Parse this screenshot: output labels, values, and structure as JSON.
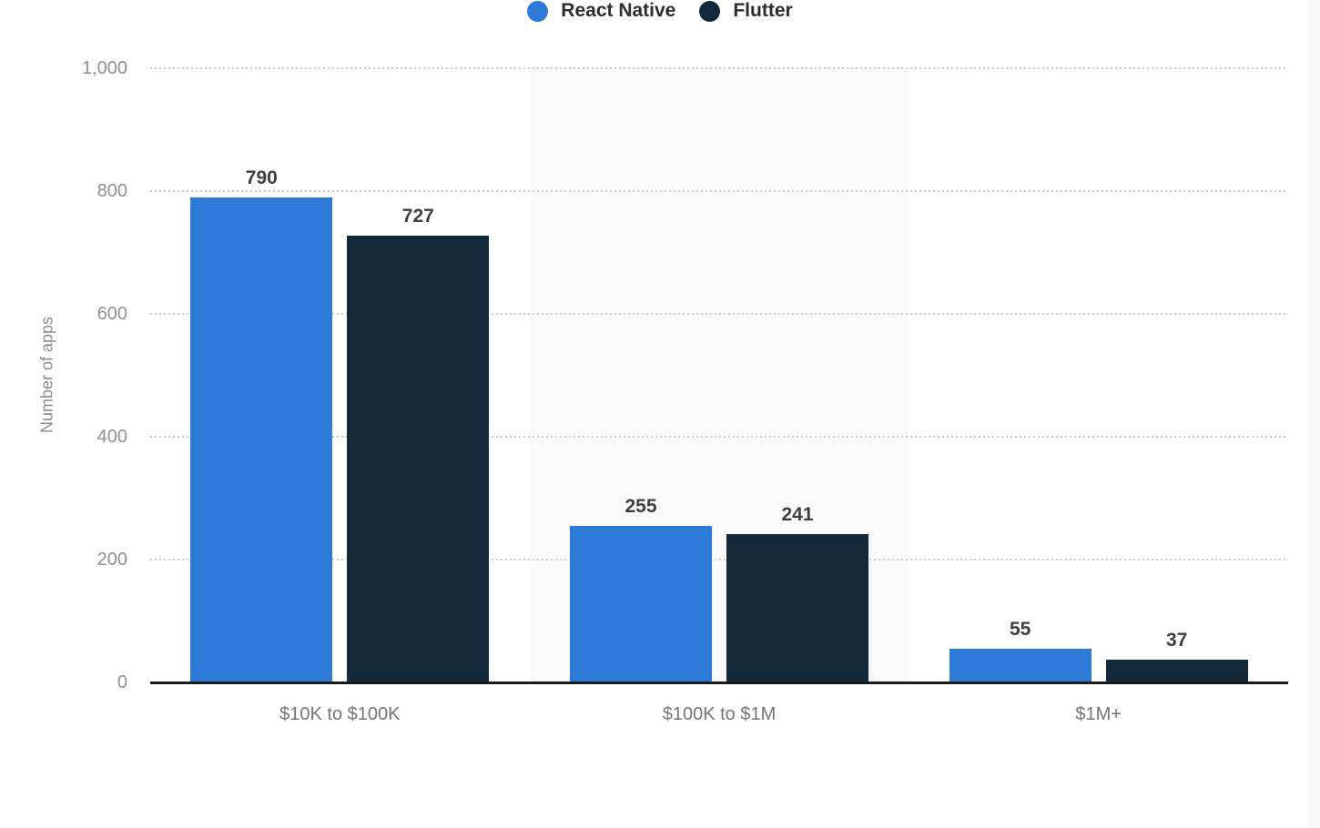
{
  "chart_data": {
    "type": "bar",
    "title": "",
    "categories": [
      "$10K to $100K",
      "$100K to $1M",
      "$1M+"
    ],
    "series": [
      {
        "name": "React Native",
        "color": "#2d7ad9",
        "values": [
          790,
          255,
          55
        ]
      },
      {
        "name": "Flutter",
        "color": "#12293c",
        "values": [
          727,
          241,
          37
        ]
      }
    ],
    "xlabel": "",
    "ylabel": "Number of apps",
    "ylim": [
      0,
      1000
    ],
    "yticks": [
      {
        "value": 0,
        "label": "0"
      },
      {
        "value": 200,
        "label": "200"
      },
      {
        "value": 400,
        "label": "400"
      },
      {
        "value": 600,
        "label": "600"
      },
      {
        "value": 800,
        "label": "800"
      },
      {
        "value": 1000,
        "label": "1,000"
      }
    ],
    "grid": "horizontal-dotted",
    "legend_position": "bottom-center",
    "shaded_category_indexes": [
      1
    ],
    "value_labels_shown": true
  },
  "colors": {
    "background": "#ffffff",
    "plot_band": "#f9f9f9",
    "right_edge_band": "#f8f8f8",
    "gridline": "#cccccc",
    "axis_line": "#1a1a1a",
    "tick_label": "#8f8f8f",
    "axis_title": "#8a8a8a",
    "category_label": "#757575",
    "value_label": "#3f3f3f",
    "legend_label": "#2d2d2d"
  }
}
